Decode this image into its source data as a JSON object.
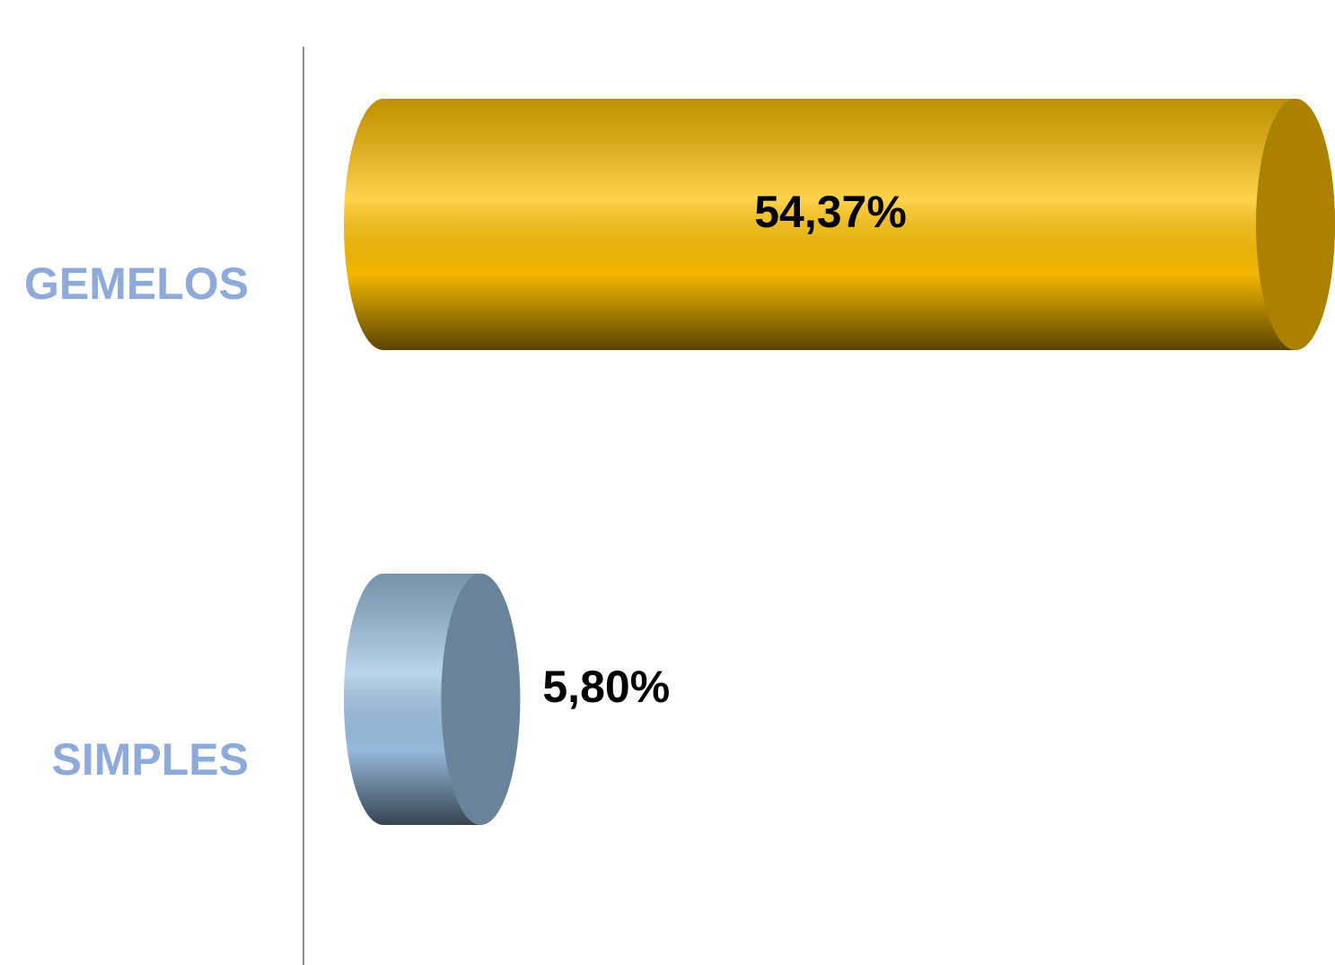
{
  "chart_data": {
    "type": "bar",
    "orientation": "horizontal",
    "style": "cylinder",
    "categories": [
      "GEMELOS",
      "SIMPLES"
    ],
    "values": [
      54.37,
      5.8
    ],
    "value_labels": [
      "54,37%",
      "5,80%"
    ],
    "colors": [
      "#ffc000",
      "#9dc3e6"
    ]
  }
}
